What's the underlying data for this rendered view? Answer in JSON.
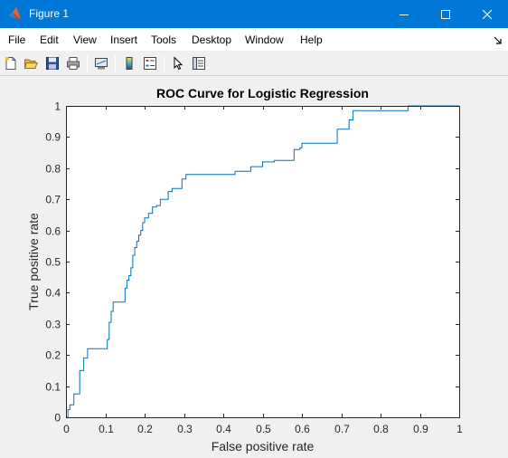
{
  "window": {
    "title": "Figure 1",
    "icon": "matlab-icon",
    "controls": [
      "minimize-icon",
      "maximize-icon",
      "close-icon"
    ]
  },
  "menu": {
    "items": [
      "File",
      "Edit",
      "View",
      "Insert",
      "Tools",
      "Desktop",
      "Window",
      "Help"
    ]
  },
  "toolbar": {
    "buttons": [
      "new-figure-icon",
      "open-file-icon",
      "save-icon",
      "print-icon",
      "link-plot-icon",
      "insert-colorbar-icon",
      "insert-legend-icon",
      "edit-plot-icon",
      "property-inspector-icon"
    ]
  },
  "chart_data": {
    "type": "line",
    "title": "ROC Curve for Logistic Regression",
    "xlabel": "False positive rate",
    "ylabel": "True positive rate",
    "xlim": [
      0,
      1
    ],
    "ylim": [
      0,
      1
    ],
    "xticks": [
      "0",
      "0.1",
      "0.2",
      "0.3",
      "0.4",
      "0.5",
      "0.6",
      "0.7",
      "0.8",
      "0.9",
      "1"
    ],
    "yticks": [
      "0",
      "0.1",
      "0.2",
      "0.3",
      "0.4",
      "0.5",
      "0.6",
      "0.7",
      "0.8",
      "0.9",
      "1"
    ],
    "grid": false,
    "line_color": "#0072bd",
    "series": [
      {
        "x": [
          0,
          0.005,
          0.005,
          0.01,
          0.01,
          0.02,
          0.02,
          0.035,
          0.035,
          0.045,
          0.045,
          0.055,
          0.055,
          0.105,
          0.105,
          0.11,
          0.11,
          0.115,
          0.115,
          0.12,
          0.12,
          0.15,
          0.15,
          0.155,
          0.155,
          0.16,
          0.16,
          0.165,
          0.165,
          0.17,
          0.17,
          0.175,
          0.175,
          0.18,
          0.18,
          0.185,
          0.185,
          0.19,
          0.19,
          0.195,
          0.195,
          0.2,
          0.2,
          0.21,
          0.21,
          0.22,
          0.22,
          0.23,
          0.23,
          0.24,
          0.24,
          0.26,
          0.26,
          0.27,
          0.27,
          0.295,
          0.295,
          0.305,
          0.305,
          0.43,
          0.43,
          0.47,
          0.47,
          0.5,
          0.5,
          0.53,
          0.53,
          0.58,
          0.58,
          0.595,
          0.595,
          0.6,
          0.6,
          0.69,
          0.69,
          0.72,
          0.72,
          0.73,
          0.73,
          0.87,
          0.87,
          1
        ],
        "y": [
          0,
          0,
          0.025,
          0.025,
          0.04,
          0.04,
          0.075,
          0.075,
          0.15,
          0.15,
          0.19,
          0.19,
          0.22,
          0.22,
          0.25,
          0.25,
          0.305,
          0.305,
          0.34,
          0.34,
          0.37,
          0.37,
          0.415,
          0.415,
          0.44,
          0.44,
          0.455,
          0.455,
          0.48,
          0.48,
          0.52,
          0.52,
          0.545,
          0.545,
          0.565,
          0.565,
          0.585,
          0.585,
          0.6,
          0.6,
          0.625,
          0.625,
          0.64,
          0.64,
          0.655,
          0.655,
          0.675,
          0.675,
          0.68,
          0.68,
          0.7,
          0.7,
          0.725,
          0.725,
          0.735,
          0.735,
          0.765,
          0.765,
          0.78,
          0.78,
          0.79,
          0.79,
          0.805,
          0.805,
          0.82,
          0.82,
          0.825,
          0.825,
          0.86,
          0.86,
          0.865,
          0.865,
          0.88,
          0.88,
          0.925,
          0.925,
          0.955,
          0.955,
          0.985,
          0.985,
          1,
          1
        ]
      }
    ]
  }
}
